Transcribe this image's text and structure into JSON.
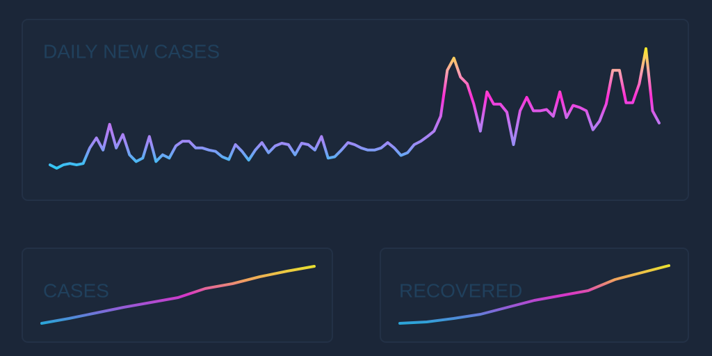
{
  "chart_data": [
    {
      "type": "line",
      "title": "DAILY NEW CASES",
      "colors": [
        "#2ec8f2",
        "#9a8cf6",
        "#c472f0",
        "#ff2fd6",
        "#ffa0b0",
        "#f7ea2a"
      ],
      "values": [
        10,
        5,
        10,
        12,
        10,
        12,
        35,
        50,
        32,
        70,
        35,
        55,
        25,
        15,
        20,
        52,
        15,
        25,
        20,
        38,
        45,
        45,
        35,
        35,
        32,
        30,
        22,
        18,
        40,
        30,
        17,
        32,
        43,
        28,
        38,
        42,
        40,
        25,
        42,
        40,
        32,
        52,
        20,
        22,
        32,
        43,
        40,
        35,
        32,
        32,
        35,
        43,
        35,
        24,
        28,
        40,
        45,
        52,
        60,
        82,
        150,
        168,
        140,
        130,
        100,
        60,
        118,
        100,
        100,
        88,
        40,
        90,
        110,
        90,
        90,
        92,
        82,
        118,
        80,
        98,
        95,
        90,
        62,
        75,
        100,
        150,
        150,
        102,
        102,
        130,
        182,
        90,
        72
      ]
    },
    {
      "type": "line",
      "title": "CASES",
      "colors": [
        "#2aa6d8",
        "#8a62d8",
        "#d735c8",
        "#f0a060",
        "#e8e030"
      ],
      "values": [
        35,
        42,
        50,
        58,
        65,
        72,
        85,
        92,
        102,
        110,
        117
      ]
    },
    {
      "type": "line",
      "title": "RECOVERED",
      "colors": [
        "#2aa6d8",
        "#8a62d8",
        "#d735c8",
        "#f0a060",
        "#e8e030"
      ],
      "values": [
        35,
        37,
        42,
        48,
        58,
        68,
        75,
        82,
        98,
        108,
        118
      ]
    }
  ]
}
